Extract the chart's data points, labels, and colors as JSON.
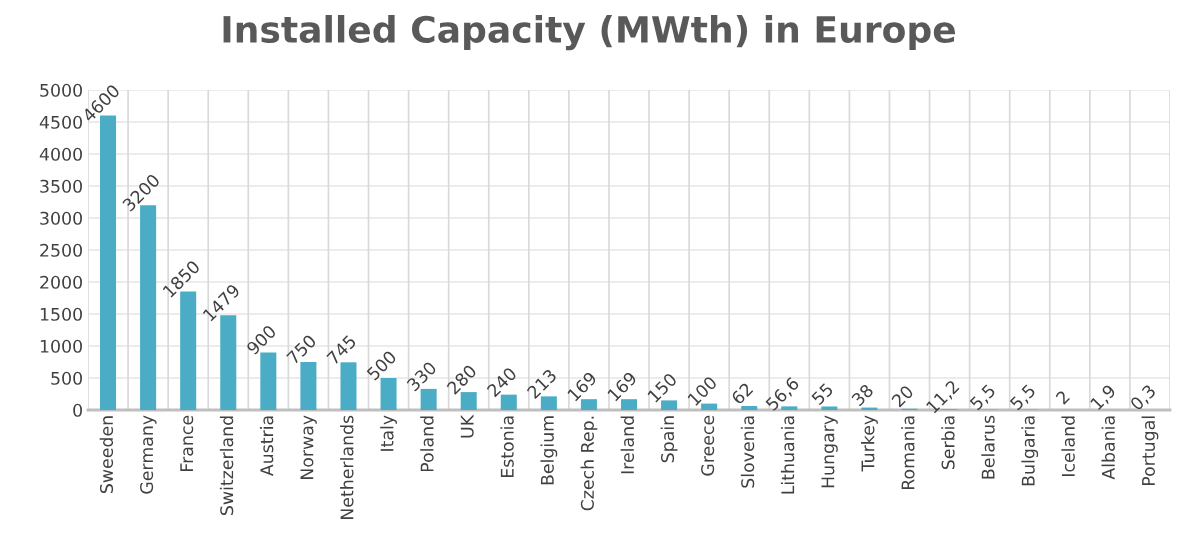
{
  "chart_data": {
    "type": "bar",
    "title": "Installed Capacity (MWth) in Europe",
    "categories": [
      "Sweeden",
      "Germany",
      "France",
      "Switzerland",
      "Austria",
      "Norway",
      "Netherlands",
      "Italy",
      "Poland",
      "UK",
      "Estonia",
      "Belgium",
      "Czech Rep.",
      "Ireland",
      "Spain",
      "Greece",
      "Slovenia",
      "Lithuania",
      "Hungary",
      "Turkey",
      "Romania",
      "Serbia",
      "Belarus",
      "Bulgaria",
      "Iceland",
      "Albania",
      "Portugal"
    ],
    "values": [
      4600,
      3200,
      1850,
      1479,
      900,
      750,
      745,
      500,
      330,
      280,
      240,
      213,
      169,
      169,
      150,
      100,
      62,
      56.6,
      55,
      38,
      20,
      11.2,
      5.5,
      5.5,
      2,
      1.9,
      0.3
    ],
    "value_labels": [
      "4600",
      "3200",
      "1850",
      "1479",
      "900",
      "750",
      "745",
      "500",
      "330",
      "280",
      "240",
      "213",
      "169",
      "169",
      "150",
      "100",
      "62",
      "56,6",
      "55",
      "38",
      "20",
      "11,2",
      "5,5",
      "5,5",
      "2",
      "1,9",
      "0,3"
    ],
    "color": "#4bacc6",
    "ylim": [
      0,
      5000
    ],
    "yticks": [
      0,
      500,
      1000,
      1500,
      2000,
      2500,
      3000,
      3500,
      4000,
      4500,
      5000
    ],
    "grid": true
  }
}
